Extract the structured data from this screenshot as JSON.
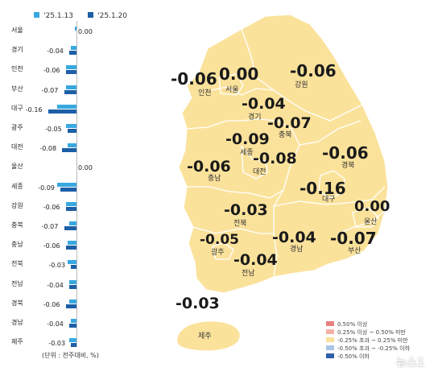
{
  "chart_data": {
    "type": "bar",
    "series": [
      {
        "name": "'25.1.13",
        "values": [
          -0.01,
          -0.03,
          -0.06,
          -0.06,
          -0.11,
          -0.06,
          -0.05,
          0.0,
          -0.11,
          -0.06,
          -0.04,
          -0.05,
          -0.05,
          -0.04,
          -0.04,
          -0.03,
          -0.04
        ]
      },
      {
        "name": "'25.1.20",
        "values": [
          0.0,
          -0.04,
          -0.06,
          -0.07,
          -0.16,
          -0.05,
          -0.08,
          0.0,
          -0.09,
          -0.06,
          -0.07,
          -0.06,
          -0.03,
          -0.04,
          -0.06,
          -0.04,
          -0.03
        ]
      }
    ],
    "categories": [
      "서울",
      "경기",
      "인천",
      "부산",
      "대구",
      "광주",
      "대전",
      "울산",
      "세종",
      "강원",
      "충북",
      "충남",
      "전북",
      "전남",
      "경북",
      "경남",
      "제주"
    ],
    "labels": [
      "0.00",
      "-0.04",
      "-0.06",
      "-0.07",
      "-0.16",
      "-0.05",
      "-0.08",
      "0.00",
      "-0.09",
      "-0.06",
      "-0.07",
      "-0.06",
      "-0.03",
      "-0.04",
      "-0.06",
      "-0.04",
      "-0.03"
    ],
    "unit_note": "(단위 : 전주대비, %)"
  },
  "map": {
    "regions": [
      {
        "name": "인천",
        "value": "-0.06"
      },
      {
        "name": "서울",
        "value": "0.00"
      },
      {
        "name": "강원",
        "value": "-0.06"
      },
      {
        "name": "경기",
        "value": "-0.04"
      },
      {
        "name": "충북",
        "value": "-0.07"
      },
      {
        "name": "세종",
        "value": "-0.09"
      },
      {
        "name": "대전",
        "value": "-0.08"
      },
      {
        "name": "충남",
        "value": "-0.06"
      },
      {
        "name": "경북",
        "value": "-0.06"
      },
      {
        "name": "대구",
        "value": "-0.16"
      },
      {
        "name": "울산",
        "value": "0.00"
      },
      {
        "name": "전북",
        "value": "-0.03"
      },
      {
        "name": "광주",
        "value": "-0.05"
      },
      {
        "name": "경남",
        "value": "-0.04"
      },
      {
        "name": "부산",
        "value": "-0.07"
      },
      {
        "name": "전남",
        "value": "-0.04"
      },
      {
        "name": "제주",
        "value": "-0.03"
      }
    ],
    "legend": [
      {
        "label": "0.50% 이상",
        "color": "#e88080"
      },
      {
        "label": "0.25% 이상 ~ 0.50% 미만",
        "color": "#f4b2a6"
      },
      {
        "label": "-0.25% 초과 ~ 0.25% 미만",
        "color": "#fbe29b"
      },
      {
        "label": "-0.50% 초과 ~ -0.25% 이하",
        "color": "#a9c6e8"
      },
      {
        "label": "-0.50% 이하",
        "color": "#2f5fa8"
      }
    ],
    "fill_color": "#fbe29b",
    "watermark": "뉴스1"
  }
}
